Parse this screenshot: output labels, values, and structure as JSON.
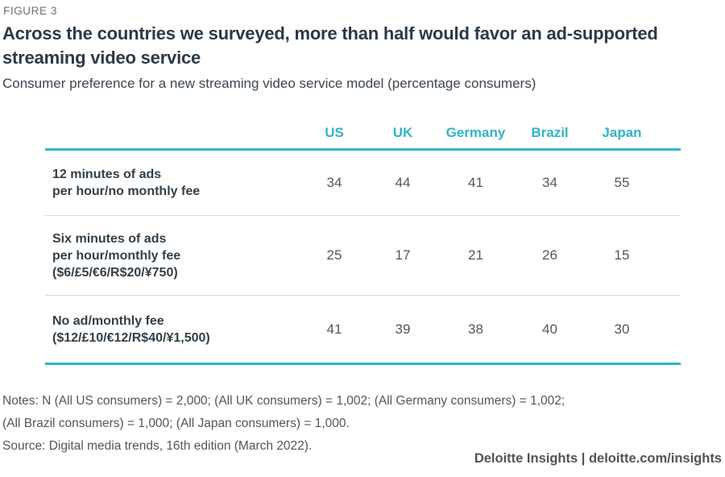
{
  "figure_label": "FIGURE 3",
  "title": "Across the countries we surveyed, more than half would favor an ad-supported streaming video service",
  "subtitle": "Consumer preference for a new streaming video service model (percentage consumers)",
  "table": {
    "columns": [
      "US",
      "UK",
      "Germany",
      "Brazil",
      "Japan"
    ],
    "rows": [
      {
        "label_lines": [
          "12 minutes of ads",
          "per hour/no monthly fee",
          ""
        ],
        "values": [
          "34",
          "44",
          "41",
          "34",
          "55"
        ]
      },
      {
        "label_lines": [
          "Six minutes of ads",
          "per hour/monthly fee",
          "($6/£5/€6/R$20/¥750)"
        ],
        "values": [
          "25",
          "17",
          "21",
          "26",
          "15"
        ]
      },
      {
        "label_lines": [
          "No ad/monthly fee",
          "($12/£10/€12/R$40/¥1,500)",
          ""
        ],
        "values": [
          "41",
          "39",
          "38",
          "40",
          "30"
        ]
      }
    ]
  },
  "notes": {
    "line1": "Notes: N (All US consumers) = 2,000; (All UK consumers) = 1,002; (All Germany consumers) = 1,002;",
    "line2": "(All Brazil consumers) = 1,000; (All Japan consumers) = 1,000.",
    "source": "Source: Digital media trends, 16th edition (March 2022)."
  },
  "footer": "Deloitte Insights | deloitte.com/insights",
  "colors": {
    "accent_teal": "#32b4c8",
    "title_text": "#2c3946",
    "row_label_text": "#333f48",
    "body_text": "#53565a",
    "row_separator": "#d9d9d6",
    "background": "#ffffff"
  },
  "chart_data": {
    "type": "table",
    "title": "Across the countries we surveyed, more than half would favor an ad-supported streaming video service",
    "subtitle": "Consumer preference for a new streaming video service model (percentage consumers)",
    "categories": [
      "US",
      "UK",
      "Germany",
      "Brazil",
      "Japan"
    ],
    "series": [
      {
        "name": "12 minutes of ads per hour/no monthly fee",
        "values": [
          34,
          44,
          41,
          34,
          55
        ]
      },
      {
        "name": "Six minutes of ads per hour/monthly fee ($6/£5/€6/R$20/¥750)",
        "values": [
          25,
          17,
          21,
          26,
          15
        ]
      },
      {
        "name": "No ad/monthly fee ($12/£10/€12/R$40/¥1,500)",
        "values": [
          41,
          39,
          38,
          40,
          30
        ]
      }
    ],
    "values_unit": "percentage consumers",
    "notes": "Notes: N (All US consumers) = 2,000; (All UK consumers) = 1,002; (All Germany consumers) = 1,002; (All Brazil consumers) = 1,000; (All Japan consumers) = 1,000.",
    "source": "Source: Digital media trends, 16th edition (March 2022)."
  }
}
